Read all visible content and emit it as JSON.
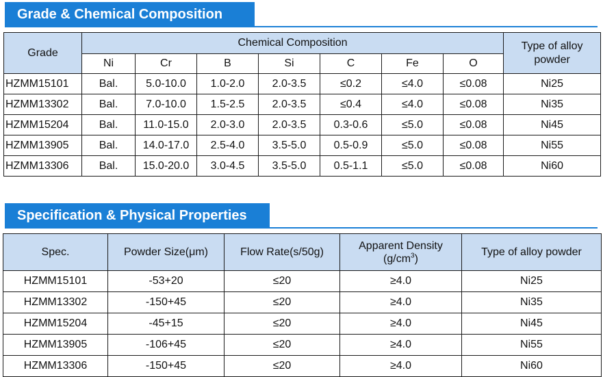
{
  "section1": {
    "title": "Grade & Chemical Composition",
    "header_grade": "Grade",
    "header_chem": "Chemical Composition",
    "header_type": "Type of alloy powder",
    "elements": [
      "Ni",
      "Cr",
      "B",
      "Si",
      "C",
      "Fe",
      "O"
    ],
    "rows": [
      [
        "HZMM15101",
        "Bal.",
        "5.0-10.0",
        "1.0-2.0",
        "2.0-3.5",
        "≤0.2",
        "≤4.0",
        "≤0.08",
        "Ni25"
      ],
      [
        "HZMM13302",
        "Bal.",
        "7.0-10.0",
        "1.5-2.5",
        "2.0-3.5",
        "≤0.4",
        "≤4.0",
        "≤0.08",
        "Ni35"
      ],
      [
        "HZMM15204",
        "Bal.",
        "11.0-15.0",
        "2.0-3.0",
        "2.0-3.5",
        "0.3-0.6",
        "≤5.0",
        "≤0.08",
        "Ni45"
      ],
      [
        "HZMM13905",
        "Bal.",
        "14.0-17.0",
        "2.5-4.0",
        "3.5-5.0",
        "0.5-0.9",
        "≤5.0",
        "≤0.08",
        "Ni55"
      ],
      [
        "HZMM13306",
        "Bal.",
        "15.0-20.0",
        "3.0-4.5",
        "3.5-5.0",
        "0.5-1.1",
        "≤5.0",
        "≤0.08",
        "Ni60"
      ]
    ]
  },
  "section2": {
    "title": "Specification & Physical Properties",
    "headers": {
      "spec": "Spec.",
      "size": "Powder Size(μm)",
      "flow": "Flow Rate(s/50g)",
      "density_line1": "Apparent Density",
      "density_line2": "(g/cm",
      "density_sup": "3",
      "density_close": ")",
      "type": "Type of alloy powder"
    },
    "rows": [
      [
        "HZMM15101",
        "-53+20",
        "≤20",
        "≥4.0",
        "Ni25"
      ],
      [
        "HZMM13302",
        "-150+45",
        "≤20",
        "≥4.0",
        "Ni35"
      ],
      [
        "HZMM15204",
        "-45+15",
        "≤20",
        "≥4.0",
        "Ni45"
      ],
      [
        "HZMM13905",
        "-106+45",
        "≤20",
        "≥4.0",
        "Ni55"
      ],
      [
        "HZMM13306",
        "-150+45",
        "≤20",
        "≥4.0",
        "Ni60"
      ]
    ]
  }
}
